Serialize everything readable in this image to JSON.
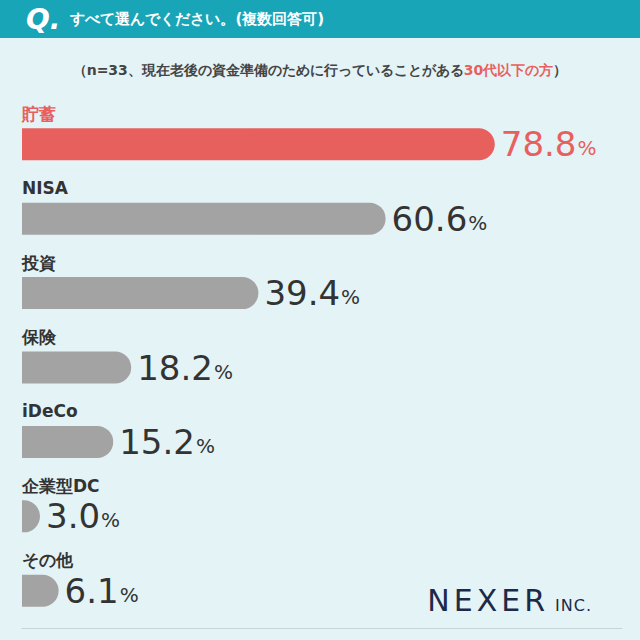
{
  "header": {
    "prefix": "Q.",
    "title": "すべて選んでください。(複数回答可)"
  },
  "chart_data": {
    "type": "bar",
    "orientation": "horizontal",
    "subtitle": "（n=33、現在老後の資金準備のために行っていることがある30代以下の方）",
    "subtitle_highlight": "30代以下の方",
    "categories": [
      "貯蓄",
      "NISA",
      "投資",
      "保険",
      "iDeCo",
      "企業型DC",
      "その他"
    ],
    "values": [
      78.8,
      60.6,
      39.4,
      18.2,
      15.2,
      3.0,
      6.1
    ],
    "value_labels": [
      "78.8%",
      "60.6%",
      "39.4%",
      "18.2%",
      "15.2%",
      "3.0%",
      "6.1%"
    ],
    "colors": [
      "#e8605e",
      "#a3a3a3",
      "#a3a3a3",
      "#a3a3a3",
      "#a3a3a3",
      "#a3a3a3",
      "#a3a3a3"
    ],
    "xlim": [
      0,
      100
    ],
    "tick_labels": false,
    "grid": false,
    "data_labels": true
  },
  "logo": "NEXER INC."
}
